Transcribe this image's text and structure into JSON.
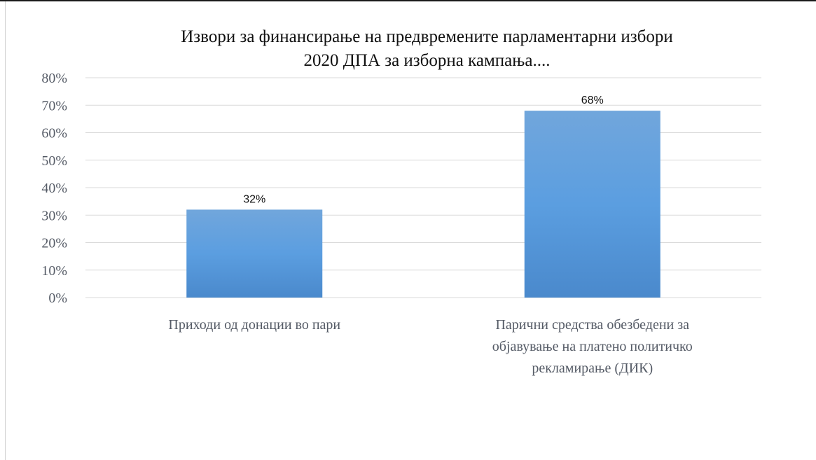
{
  "chart_data": {
    "type": "bar",
    "title": "Извори за финансирање на предвремените парламентарни избори 2020 ДПА за изборна кампања....",
    "title_lines": [
      "Извори за финансирање на предвремените парламентарни избори",
      "2020 ДПА за изборна кампања...."
    ],
    "categories": [
      "Приходи од донации во пари",
      "Парични средства обезбедени за објавување на платено политичко рекламирање (ДИК)"
    ],
    "category_lines": [
      [
        "Приходи од донации во пари"
      ],
      [
        "Парични средства обезбедени за",
        "објавување на платено политичко",
        "рекламирање (ДИК)"
      ]
    ],
    "values": [
      0.32,
      0.68
    ],
    "data_labels": [
      "32%",
      "68%"
    ],
    "y_ticks": [
      "0%",
      "10%",
      "20%",
      "30%",
      "40%",
      "50%",
      "60%",
      "70%",
      "80%"
    ],
    "ylim": [
      0,
      0.8
    ],
    "xlabel": "",
    "ylabel": "",
    "grid": true,
    "legend": "none",
    "colors": {
      "bar_top": "#71a6dc",
      "bar_mid": "#5b9ee0",
      "bar_bottom": "#4a89cc",
      "grid": "#d9d9d9",
      "axis": "#d9d9d9"
    }
  }
}
